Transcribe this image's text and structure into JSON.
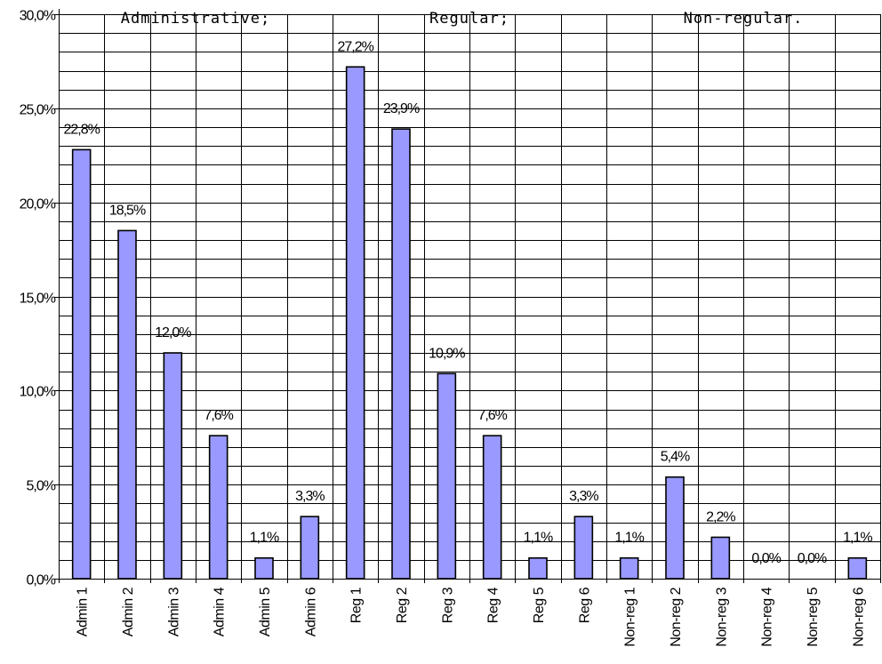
{
  "chart_data": {
    "type": "bar",
    "categories": [
      "Admin 1",
      "Admin 2",
      "Admin 3",
      "Admin 4",
      "Admin 5",
      "Admin 6",
      "Reg 1",
      "Reg 2",
      "Reg 3",
      "Reg 4",
      "Reg 5",
      "Reg 6",
      "Non-reg 1",
      "Non-reg 2",
      "Non-reg 3",
      "Non-reg 4",
      "Non-reg 5",
      "Non-reg 6"
    ],
    "values": [
      22.8,
      18.5,
      12.0,
      7.6,
      1.1,
      3.3,
      27.2,
      23.9,
      10.9,
      7.6,
      1.1,
      3.3,
      1.1,
      5.4,
      2.2,
      0.0,
      0.0,
      1.1
    ],
    "data_labels": [
      "22,8%",
      "18,5%",
      "12,0%",
      "7,6%",
      "1,1%",
      "3,3%",
      "27,2%",
      "23,9%",
      "10,9%",
      "7,6%",
      "1,1%",
      "3,3%",
      "1,1%",
      "5,4%",
      "2,2%",
      "0,0%",
      "0,0%",
      "1,1%"
    ],
    "ylim": [
      0,
      30
    ],
    "y_ticks": [
      0,
      5,
      10,
      15,
      20,
      25,
      30
    ],
    "y_tick_labels": [
      "0,0%",
      "5,0%",
      "10,0%",
      "15,0%",
      "20,0%",
      "25,0%",
      "30,0%"
    ],
    "minor_grid_step": 1,
    "groups": [
      {
        "label": "Administrative;",
        "start": 0,
        "end": 5
      },
      {
        "label": "Regular;",
        "start": 6,
        "end": 11
      },
      {
        "label": "Non-regular.",
        "start": 12,
        "end": 17
      }
    ],
    "title": "",
    "xlabel": "",
    "ylabel": "",
    "grid": true,
    "legend": "none",
    "bar_color": "#9999ff",
    "bar_border": "#000000"
  }
}
